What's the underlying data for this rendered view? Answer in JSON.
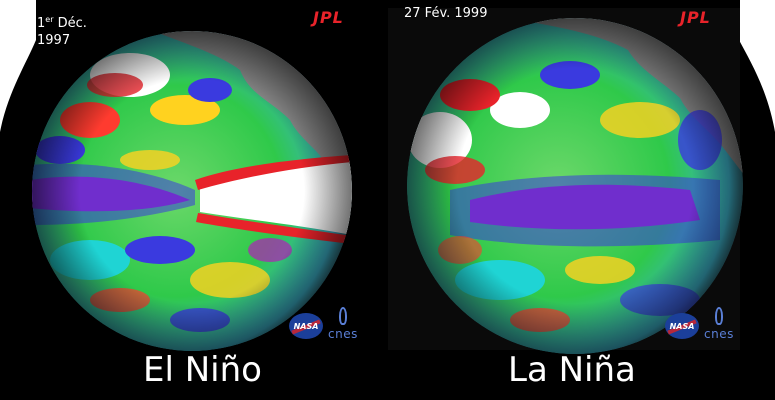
{
  "image_description": {
    "left": {
      "date_day": "1",
      "date_sup": "er",
      "date_month": "Déc.",
      "date_year": "1997",
      "logo_jpl": "JPL",
      "logo_nasa": "NASA",
      "logo_cnes": "cnes",
      "caption": "El Niño"
    },
    "right": {
      "date": "27 Fév. 1999",
      "logo_jpl": "JPL",
      "logo_nasa": "NASA",
      "logo_cnes": "cnes",
      "caption": "La Niña"
    }
  },
  "colors": {
    "background": "#000000",
    "land": "#8a8a8a",
    "ocean_green": "#2fc94a",
    "anomaly_warm": "#ffffff",
    "anomaly_hot": "#e8232a",
    "anomaly_cool": "#3a3adf",
    "anomaly_cold": "#b21fb8",
    "jpl_red": "#e8232a",
    "nasa_blue": "#1b3f9a",
    "cnes_blue": "#5a7fd6"
  }
}
